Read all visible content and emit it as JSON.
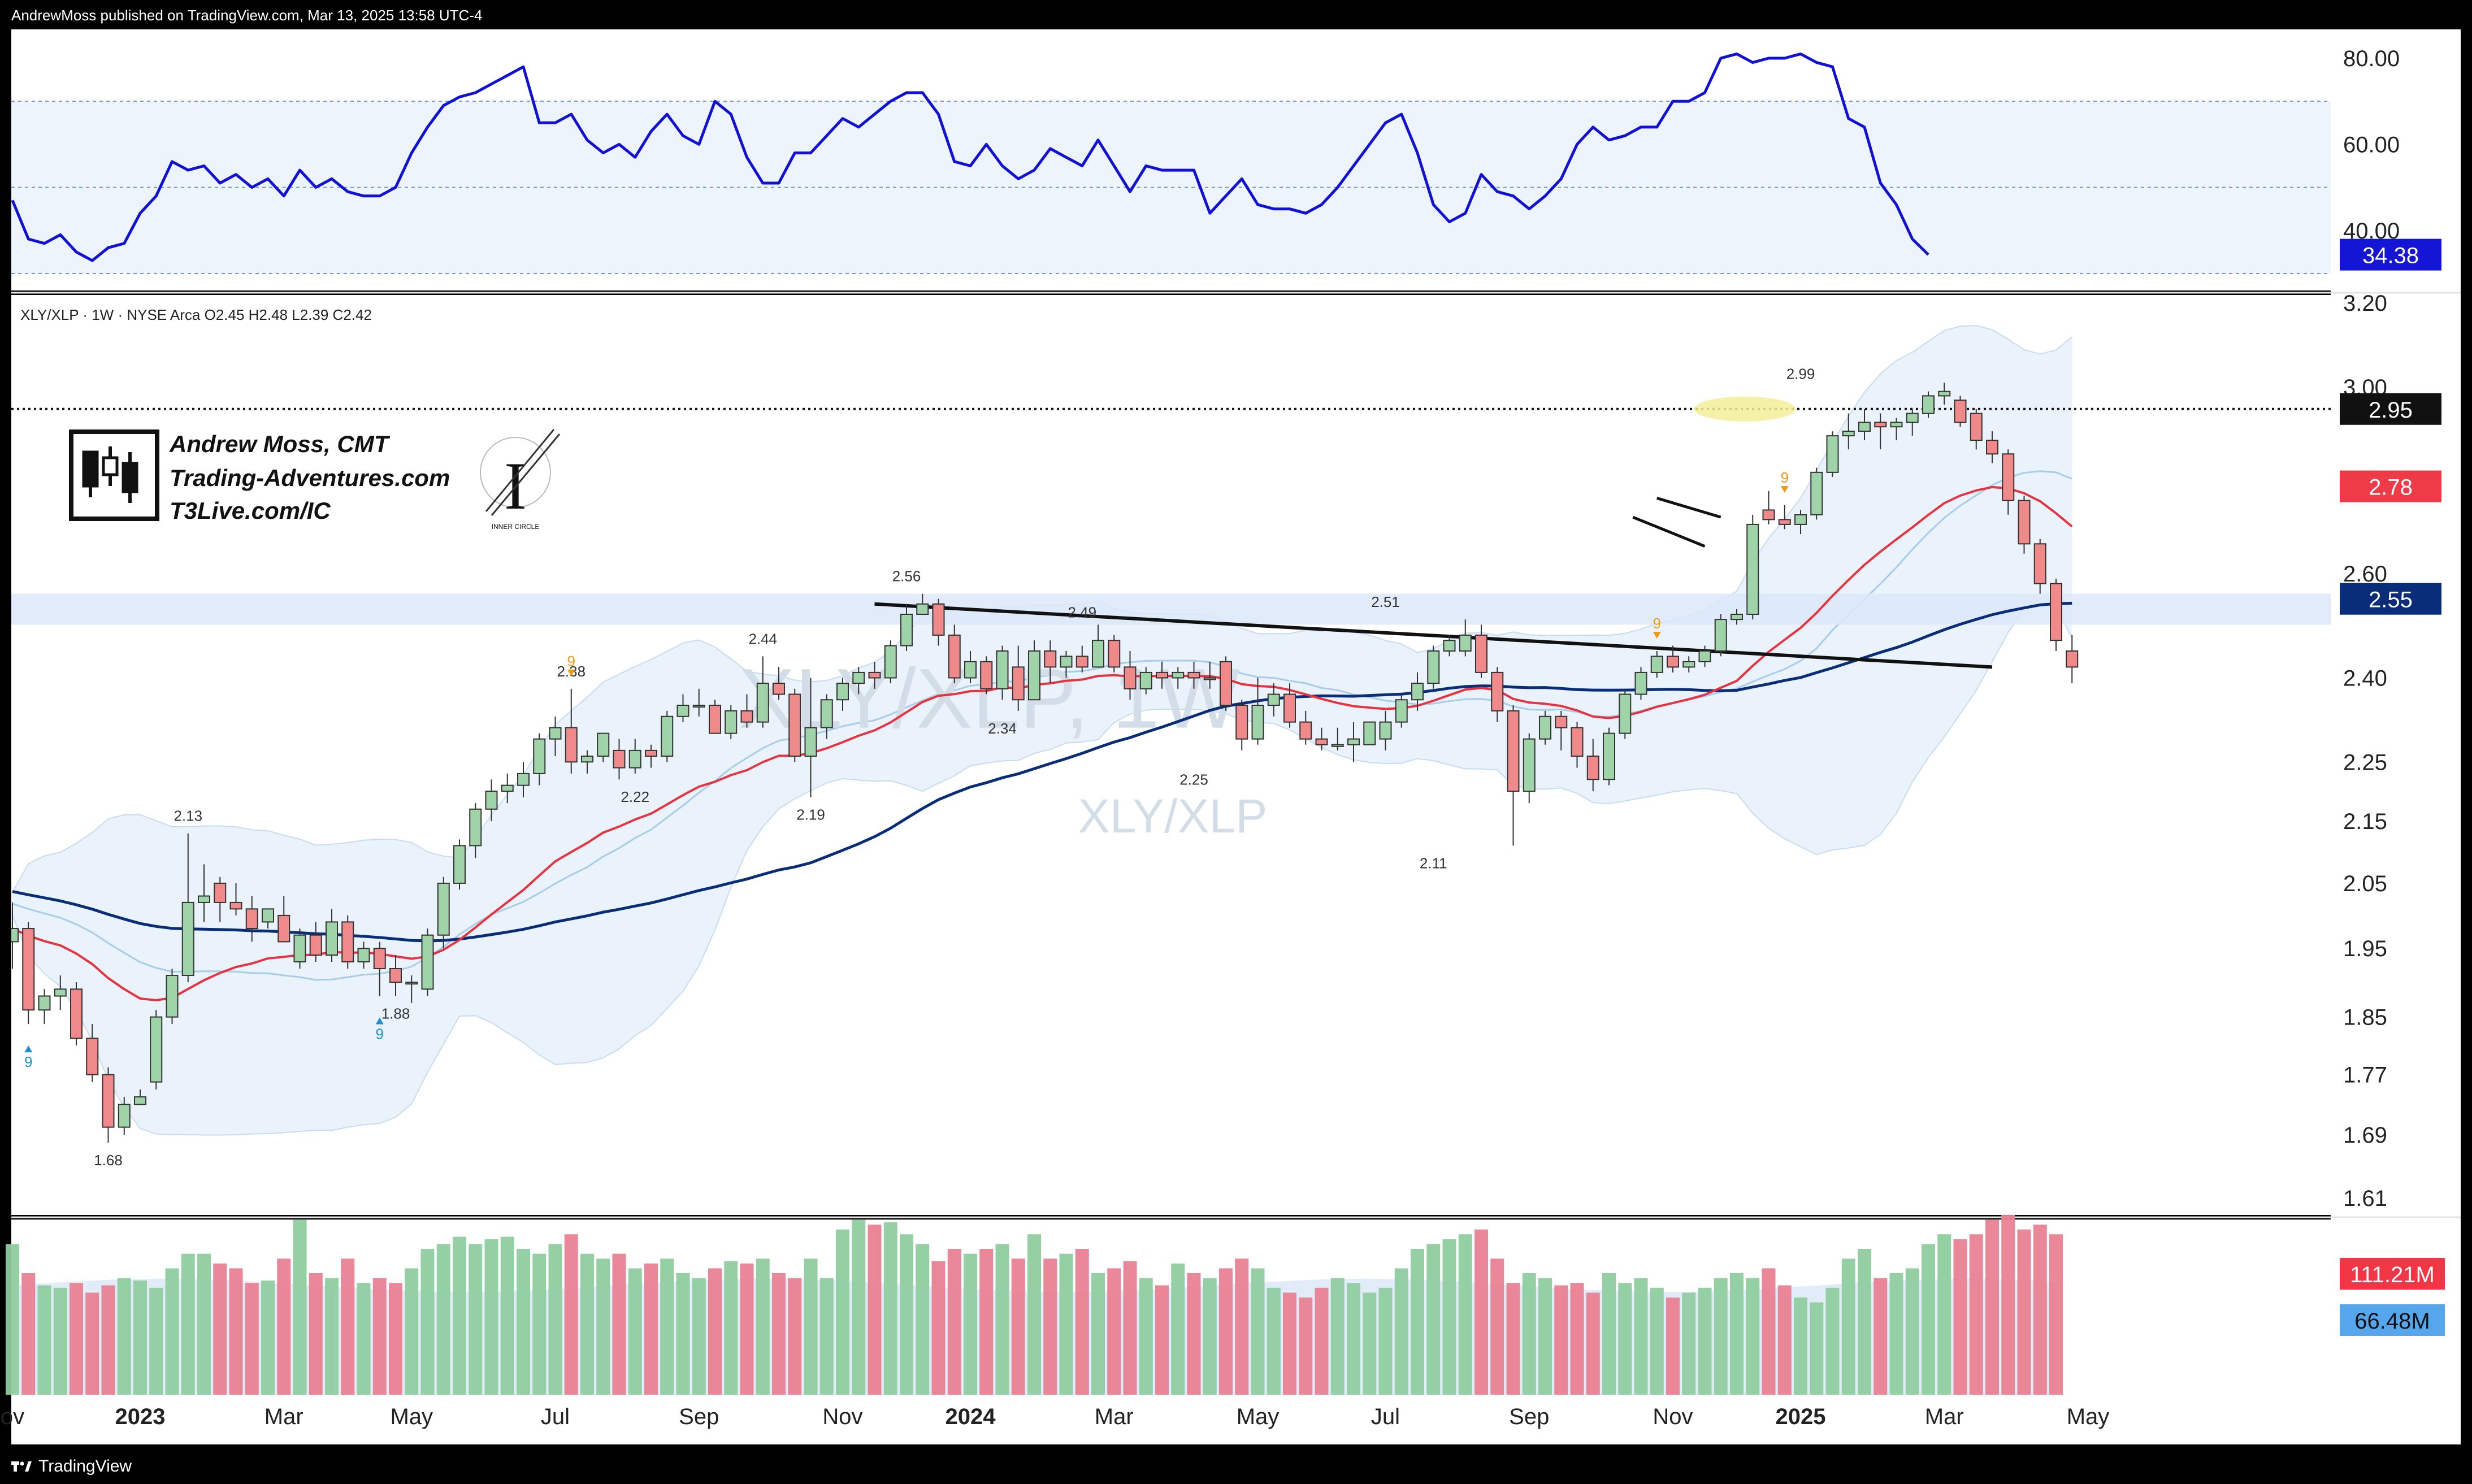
{
  "header": {
    "published": "AndrewMoss published on TradingView.com, Mar 13, 2025 13:58 UTC-4"
  },
  "footer": {
    "brand": "TradingView"
  },
  "colors": {
    "up": "#9fd3a8",
    "down": "#f08a8a",
    "ema": "#e8323f",
    "sma": "#0a2d7a",
    "bb": "#a8cdea",
    "rsi": "#1010d8"
  },
  "branding": {
    "name": "Andrew Moss, CMT",
    "site": "Trading-Adventures.com",
    "site2": "T3Live.com/IC",
    "logo_caption": "INNER CIRCLE"
  },
  "chart_data": [
    {
      "type": "line",
      "panel": "rsi",
      "y_ticks": [
        "80.00",
        "60.00",
        "40.00"
      ],
      "band": [
        30,
        70
      ],
      "last_value_label": "34.38",
      "values": [
        47,
        38,
        37,
        39,
        35,
        33,
        36,
        37,
        44,
        48,
        56,
        54,
        55,
        51,
        53,
        50,
        52,
        48,
        54,
        50,
        52,
        49,
        48,
        48,
        50,
        58,
        64,
        69,
        71,
        72,
        74,
        76,
        78,
        65,
        65,
        67,
        61,
        58,
        60,
        57,
        63,
        67,
        62,
        60,
        70,
        67,
        57,
        51,
        51,
        58,
        58,
        62,
        66,
        64,
        67,
        70,
        72,
        72,
        67,
        56,
        55,
        60,
        55,
        52,
        54,
        59,
        57,
        55,
        61,
        55,
        49,
        55,
        54,
        54,
        54,
        44,
        48,
        52,
        46,
        45,
        45,
        44,
        46,
        50,
        55,
        60,
        65,
        67,
        58,
        46,
        42,
        44,
        53,
        49,
        48,
        45,
        48,
        52,
        60,
        64,
        61,
        62,
        64,
        64,
        70,
        70,
        72,
        80,
        81,
        79,
        80,
        80,
        81,
        79,
        78,
        66,
        64,
        51,
        46,
        38,
        34.38
      ]
    },
    {
      "type": "candlestick",
      "panel": "price",
      "legend": "XLY/XLP · 1W · NYSE Arca  O2.45  H2.48  L2.39  C2.42",
      "watermark_large": "XLY/XLP, 1W",
      "watermark_small": "XLY/XLP",
      "y_ticks": [
        "3.20",
        "3.00",
        "2.60",
        "2.40",
        "2.25",
        "2.15",
        "2.05",
        "1.95",
        "1.85",
        "1.77",
        "1.69",
        "1.61"
      ],
      "x_ticks": [
        [
          "ov",
          0
        ],
        [
          "2023",
          8
        ],
        [
          "Mar",
          17
        ],
        [
          "May",
          25
        ],
        [
          "Jul",
          34
        ],
        [
          "Sep",
          43
        ],
        [
          "Nov",
          52
        ],
        [
          "2024",
          60
        ],
        [
          "Mar",
          69
        ],
        [
          "May",
          78
        ],
        [
          "Jul",
          86
        ],
        [
          "Sep",
          95
        ],
        [
          "Nov",
          104
        ],
        [
          "2025",
          112
        ],
        [
          "Mar",
          121
        ],
        [
          "May",
          130
        ]
      ],
      "candles": [
        [
          1.96,
          2.02,
          1.92,
          1.98
        ],
        [
          1.98,
          1.99,
          1.84,
          1.86
        ],
        [
          1.86,
          1.89,
          1.84,
          1.88
        ],
        [
          1.88,
          1.91,
          1.86,
          1.89
        ],
        [
          1.89,
          1.9,
          1.81,
          1.82
        ],
        [
          1.82,
          1.84,
          1.76,
          1.77
        ],
        [
          1.77,
          1.78,
          1.68,
          1.7
        ],
        [
          1.7,
          1.74,
          1.69,
          1.73
        ],
        [
          1.73,
          1.75,
          1.73,
          1.74
        ],
        [
          1.76,
          1.86,
          1.75,
          1.85
        ],
        [
          1.85,
          1.92,
          1.84,
          1.91
        ],
        [
          1.91,
          2.13,
          1.9,
          2.02
        ],
        [
          2.02,
          2.08,
          1.99,
          2.03
        ],
        [
          2.05,
          2.06,
          1.99,
          2.02
        ],
        [
          2.02,
          2.05,
          2.0,
          2.01
        ],
        [
          2.01,
          2.03,
          1.96,
          1.98
        ],
        [
          1.99,
          2.0,
          1.98,
          2.01
        ],
        [
          2.0,
          2.03,
          1.96,
          1.96
        ],
        [
          1.93,
          1.98,
          1.92,
          1.97
        ],
        [
          1.97,
          1.99,
          1.93,
          1.94
        ],
        [
          1.94,
          2.01,
          1.93,
          1.99
        ],
        [
          1.99,
          2.0,
          1.92,
          1.93
        ],
        [
          1.93,
          1.96,
          1.92,
          1.95
        ],
        [
          1.95,
          1.96,
          1.88,
          1.92
        ],
        [
          1.92,
          1.94,
          1.88,
          1.9
        ],
        [
          1.9,
          1.91,
          1.87,
          1.9
        ],
        [
          1.89,
          1.98,
          1.88,
          1.97
        ],
        [
          1.97,
          2.06,
          1.95,
          2.05
        ],
        [
          2.05,
          2.12,
          2.04,
          2.11
        ],
        [
          2.11,
          2.18,
          2.09,
          2.17
        ],
        [
          2.17,
          2.22,
          2.15,
          2.2
        ],
        [
          2.2,
          2.23,
          2.18,
          2.21
        ],
        [
          2.21,
          2.25,
          2.19,
          2.23
        ],
        [
          2.23,
          2.3,
          2.21,
          2.29
        ],
        [
          2.29,
          2.33,
          2.26,
          2.31
        ],
        [
          2.31,
          2.38,
          2.23,
          2.25
        ],
        [
          2.25,
          2.27,
          2.23,
          2.26
        ],
        [
          2.26,
          2.3,
          2.25,
          2.3
        ],
        [
          2.27,
          2.29,
          2.22,
          2.24
        ],
        [
          2.24,
          2.29,
          2.23,
          2.27
        ],
        [
          2.27,
          2.28,
          2.24,
          2.26
        ],
        [
          2.26,
          2.34,
          2.25,
          2.33
        ],
        [
          2.33,
          2.37,
          2.32,
          2.35
        ],
        [
          2.35,
          2.38,
          2.33,
          2.35
        ],
        [
          2.35,
          2.36,
          2.3,
          2.3
        ],
        [
          2.3,
          2.35,
          2.29,
          2.34
        ],
        [
          2.34,
          2.37,
          2.31,
          2.32
        ],
        [
          2.32,
          2.44,
          2.31,
          2.39
        ],
        [
          2.39,
          2.42,
          2.36,
          2.37
        ],
        [
          2.37,
          2.38,
          2.25,
          2.26
        ],
        [
          2.26,
          2.4,
          2.19,
          2.31
        ],
        [
          2.31,
          2.37,
          2.29,
          2.36
        ],
        [
          2.36,
          2.4,
          2.34,
          2.39
        ],
        [
          2.39,
          2.42,
          2.37,
          2.41
        ],
        [
          2.41,
          2.43,
          2.38,
          2.4
        ],
        [
          2.4,
          2.47,
          2.39,
          2.46
        ],
        [
          2.46,
          2.54,
          2.45,
          2.52
        ],
        [
          2.52,
          2.56,
          2.53,
          2.54
        ],
        [
          2.54,
          2.55,
          2.46,
          2.48
        ],
        [
          2.48,
          2.5,
          2.39,
          2.4
        ],
        [
          2.4,
          2.45,
          2.39,
          2.43
        ],
        [
          2.43,
          2.44,
          2.37,
          2.38
        ],
        [
          2.38,
          2.46,
          2.36,
          2.45
        ],
        [
          2.42,
          2.46,
          2.34,
          2.36
        ],
        [
          2.36,
          2.47,
          2.36,
          2.45
        ],
        [
          2.45,
          2.47,
          2.39,
          2.42
        ],
        [
          2.42,
          2.45,
          2.4,
          2.44
        ],
        [
          2.44,
          2.46,
          2.41,
          2.42
        ],
        [
          2.42,
          2.5,
          2.42,
          2.47
        ],
        [
          2.47,
          2.48,
          2.41,
          2.42
        ],
        [
          2.42,
          2.45,
          2.36,
          2.38
        ],
        [
          2.38,
          2.42,
          2.37,
          2.41
        ],
        [
          2.41,
          2.43,
          2.38,
          2.4
        ],
        [
          2.4,
          2.42,
          2.38,
          2.41
        ],
        [
          2.41,
          2.43,
          2.38,
          2.4
        ],
        [
          2.4,
          2.43,
          2.38,
          2.4
        ],
        [
          2.43,
          2.44,
          2.34,
          2.35
        ],
        [
          2.35,
          2.36,
          2.27,
          2.29
        ],
        [
          2.29,
          2.4,
          2.28,
          2.35
        ],
        [
          2.35,
          2.39,
          2.33,
          2.37
        ],
        [
          2.37,
          2.39,
          2.31,
          2.32
        ],
        [
          2.32,
          2.34,
          2.28,
          2.29
        ],
        [
          2.29,
          2.31,
          2.27,
          2.28
        ],
        [
          2.28,
          2.31,
          2.27,
          2.28
        ],
        [
          2.28,
          2.32,
          2.25,
          2.29
        ],
        [
          2.28,
          2.32,
          2.28,
          2.32
        ],
        [
          2.29,
          2.34,
          2.27,
          2.32
        ],
        [
          2.32,
          2.37,
          2.31,
          2.36
        ],
        [
          2.36,
          2.41,
          2.34,
          2.39
        ],
        [
          2.39,
          2.46,
          2.38,
          2.45
        ],
        [
          2.45,
          2.48,
          2.44,
          2.47
        ],
        [
          2.45,
          2.51,
          2.44,
          2.48
        ],
        [
          2.48,
          2.5,
          2.4,
          2.41
        ],
        [
          2.41,
          2.42,
          2.32,
          2.34
        ],
        [
          2.34,
          2.35,
          2.11,
          2.2
        ],
        [
          2.2,
          2.3,
          2.18,
          2.29
        ],
        [
          2.29,
          2.34,
          2.28,
          2.33
        ],
        [
          2.33,
          2.34,
          2.27,
          2.31
        ],
        [
          2.31,
          2.32,
          2.24,
          2.26
        ],
        [
          2.26,
          2.29,
          2.2,
          2.22
        ],
        [
          2.22,
          2.31,
          2.21,
          2.3
        ],
        [
          2.3,
          2.38,
          2.29,
          2.37
        ],
        [
          2.37,
          2.42,
          2.36,
          2.41
        ],
        [
          2.41,
          2.45,
          2.4,
          2.44
        ],
        [
          2.44,
          2.46,
          2.41,
          2.42
        ],
        [
          2.42,
          2.44,
          2.41,
          2.43
        ],
        [
          2.43,
          2.46,
          2.42,
          2.45
        ],
        [
          2.45,
          2.52,
          2.44,
          2.51
        ],
        [
          2.51,
          2.53,
          2.5,
          2.52
        ],
        [
          2.52,
          2.72,
          2.51,
          2.7
        ],
        [
          2.73,
          2.77,
          2.7,
          2.71
        ],
        [
          2.71,
          2.74,
          2.69,
          2.7
        ],
        [
          2.7,
          2.73,
          2.68,
          2.72
        ],
        [
          2.72,
          2.82,
          2.71,
          2.81
        ],
        [
          2.81,
          2.9,
          2.8,
          2.89
        ],
        [
          2.89,
          2.94,
          2.86,
          2.9
        ],
        [
          2.9,
          2.95,
          2.88,
          2.92
        ],
        [
          2.92,
          2.94,
          2.86,
          2.91
        ],
        [
          2.91,
          2.93,
          2.88,
          2.92
        ],
        [
          2.92,
          2.95,
          2.89,
          2.94
        ],
        [
          2.94,
          2.99,
          2.93,
          2.98
        ],
        [
          2.98,
          3.01,
          2.96,
          2.99
        ],
        [
          2.97,
          2.98,
          2.91,
          2.92
        ],
        [
          2.94,
          2.95,
          2.86,
          2.88
        ],
        [
          2.88,
          2.9,
          2.83,
          2.85
        ],
        [
          2.85,
          2.86,
          2.72,
          2.75
        ],
        [
          2.75,
          2.76,
          2.64,
          2.66
        ],
        [
          2.66,
          2.67,
          2.56,
          2.58
        ],
        [
          2.58,
          2.59,
          2.45,
          2.47
        ],
        [
          2.45,
          2.48,
          2.39,
          2.42
        ]
      ],
      "volume": [
        62,
        50,
        45,
        44,
        46,
        42,
        45,
        48,
        47,
        44,
        52,
        58,
        58,
        54,
        52,
        46,
        47,
        56,
        72,
        50,
        48,
        56,
        46,
        48,
        46,
        52,
        60,
        62,
        65,
        62,
        64,
        65,
        60,
        58,
        62,
        66,
        58,
        56,
        58,
        52,
        54,
        56,
        50,
        48,
        52,
        55,
        54,
        56,
        50,
        48,
        56,
        48,
        68,
        72,
        70,
        71,
        66,
        62,
        55,
        60,
        58,
        60,
        62,
        56,
        66,
        56,
        58,
        60,
        50,
        52,
        55,
        48,
        45,
        54,
        50,
        48,
        52,
        56,
        52,
        44,
        42,
        40,
        44,
        48,
        46,
        42,
        44,
        52,
        60,
        62,
        64,
        66,
        68,
        56,
        46,
        50,
        48,
        45,
        46,
        42,
        50,
        46,
        48,
        44,
        40,
        42,
        44,
        48,
        50,
        48,
        52,
        45,
        40,
        38,
        44,
        56,
        60,
        48,
        50,
        52,
        62,
        66,
        64,
        66,
        72,
        74,
        68,
        70,
        66
      ],
      "resistance_label": "2.95",
      "ema_last_label": "2.78",
      "sma_last_label": "2.55",
      "vol_last_label": "111.21M",
      "vol_avg_label": "66.48M",
      "annotations": [
        [
          "1.68",
          6
        ],
        [
          "2.13",
          11
        ],
        [
          "1.88",
          24
        ],
        [
          "2.38",
          35
        ],
        [
          "2.22",
          39
        ],
        [
          "2.44",
          47
        ],
        [
          "2.19",
          50
        ],
        [
          "2.56",
          56
        ],
        [
          "2.34",
          62
        ],
        [
          "2.49",
          67
        ],
        [
          "2.25",
          74
        ],
        [
          "2.51",
          86
        ],
        [
          "2.11",
          89
        ],
        [
          "2.99",
          112
        ]
      ],
      "td_markers": [
        [
          "9",
          1,
          "buy"
        ],
        [
          "9",
          23,
          "buy"
        ],
        [
          "9",
          35,
          "sell"
        ],
        [
          "9",
          103,
          "sell"
        ],
        [
          "9",
          111,
          "sell"
        ]
      ]
    }
  ]
}
